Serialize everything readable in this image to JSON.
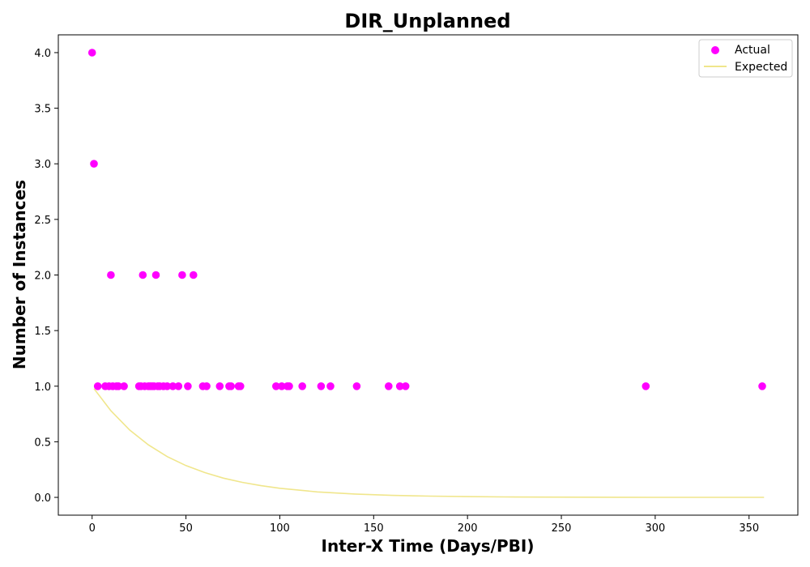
{
  "chart_data": {
    "type": "scatter",
    "title": "DIR_Unplanned",
    "xlabel": "Inter-X Time (Days/PBI)",
    "ylabel": "Number of Instances",
    "xlim": [
      -18,
      376
    ],
    "ylim": [
      -0.16,
      4.16
    ],
    "xticks": [
      0,
      50,
      100,
      150,
      200,
      250,
      300,
      350
    ],
    "yticks": [
      0.0,
      0.5,
      1.0,
      1.5,
      2.0,
      2.5,
      3.0,
      3.5,
      4.0
    ],
    "ytick_labels": [
      "0.0",
      "0.5",
      "1.0",
      "1.5",
      "2.0",
      "2.5",
      "3.0",
      "3.5",
      "4.0"
    ],
    "grid": false,
    "legend_position": "top-right",
    "series": [
      {
        "name": "Actual",
        "kind": "scatter",
        "color": "#ff00ff",
        "points": [
          [
            0,
            4
          ],
          [
            1,
            3
          ],
          [
            10,
            2
          ],
          [
            27,
            2
          ],
          [
            34,
            2
          ],
          [
            48,
            2
          ],
          [
            54,
            2
          ],
          [
            3,
            1
          ],
          [
            7,
            1
          ],
          [
            9,
            1
          ],
          [
            11,
            1
          ],
          [
            13,
            1
          ],
          [
            14,
            1
          ],
          [
            17,
            1
          ],
          [
            25,
            1
          ],
          [
            26,
            1
          ],
          [
            28,
            1
          ],
          [
            30,
            1
          ],
          [
            31,
            1
          ],
          [
            32,
            1
          ],
          [
            33,
            1
          ],
          [
            35,
            1
          ],
          [
            36,
            1
          ],
          [
            38,
            1
          ],
          [
            40,
            1
          ],
          [
            43,
            1
          ],
          [
            46,
            1
          ],
          [
            51,
            1
          ],
          [
            59,
            1
          ],
          [
            61,
            1
          ],
          [
            68,
            1
          ],
          [
            73,
            1
          ],
          [
            74,
            1
          ],
          [
            78,
            1
          ],
          [
            79,
            1
          ],
          [
            98,
            1
          ],
          [
            101,
            1
          ],
          [
            104,
            1
          ],
          [
            105,
            1
          ],
          [
            112,
            1
          ],
          [
            122,
            1
          ],
          [
            127,
            1
          ],
          [
            141,
            1
          ],
          [
            158,
            1
          ],
          [
            164,
            1
          ],
          [
            167,
            1
          ],
          [
            295,
            1
          ],
          [
            357,
            1
          ]
        ]
      },
      {
        "name": "Expected",
        "kind": "line",
        "color": "#f0e68c",
        "x": [
          1,
          10,
          20,
          30,
          40,
          50,
          60,
          70,
          80,
          90,
          100,
          120,
          140,
          160,
          180,
          200,
          220,
          240,
          260,
          280,
          300,
          320,
          340,
          358
        ],
        "y": [
          0.978,
          0.779,
          0.606,
          0.472,
          0.367,
          0.286,
          0.223,
          0.173,
          0.135,
          0.105,
          0.082,
          0.049,
          0.03,
          0.018,
          0.011,
          0.007,
          0.004,
          0.0025,
          0.0015,
          0.0009,
          0.0006,
          0.0003,
          0.0002,
          0.0001
        ]
      }
    ]
  }
}
